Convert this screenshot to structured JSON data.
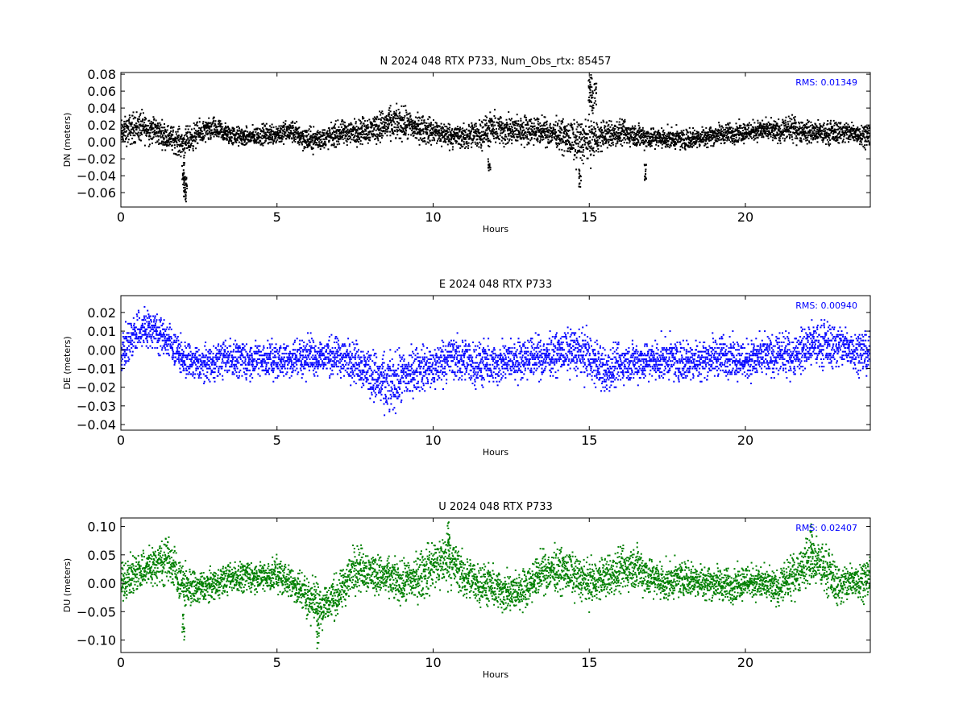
{
  "chart_data": [
    {
      "type": "scatter",
      "title": "N 2024 048 RTX  P733, Num_Obs_rtx: 85457",
      "xlabel": "Hours",
      "ylabel": "DN (meters)",
      "xlim": [
        0,
        24
      ],
      "ylim": [
        -0.077,
        0.082
      ],
      "xticks": [
        0,
        5,
        10,
        15,
        20
      ],
      "xtick_labels": [
        "0",
        "5",
        "10",
        "15",
        "20"
      ],
      "yticks": [
        0.08,
        0.06,
        0.04,
        0.02,
        0.0,
        -0.02,
        -0.04,
        -0.06
      ],
      "ytick_labels": [
        "0.08",
        "0.06",
        "0.04",
        "0.02",
        "0.00",
        "−0.02",
        "−0.04",
        "−0.06"
      ],
      "annotation": "RMS:  0.01349",
      "color": "#000000",
      "grid": false,
      "series": [
        {
          "hours": [
            0,
            0.5,
            1,
            1.5,
            2,
            2.5,
            3,
            3.5,
            4,
            4.5,
            5,
            5.5,
            6,
            6.5,
            7,
            7.5,
            8,
            8.5,
            9,
            9.5,
            10,
            10.5,
            11,
            11.5,
            12,
            12.5,
            13,
            13.5,
            14,
            14.5,
            15,
            15.5,
            16,
            16.5,
            17,
            17.5,
            18,
            18.5,
            19,
            19.5,
            20,
            20.5,
            21,
            21.5,
            22,
            22.5,
            23,
            23.5,
            24
          ],
          "center": [
            0.01,
            0.018,
            0.015,
            0.006,
            -0.002,
            0.01,
            0.015,
            0.008,
            0.005,
            0.008,
            0.01,
            0.012,
            0.002,
            0.004,
            0.01,
            0.012,
            0.015,
            0.02,
            0.022,
            0.016,
            0.012,
            0.008,
            0.005,
            0.01,
            0.015,
            0.012,
            0.015,
            0.012,
            0.01,
            0.0,
            0.002,
            0.008,
            0.01,
            0.008,
            0.005,
            0.004,
            0.003,
            0.005,
            0.008,
            0.01,
            0.012,
            0.014,
            0.012,
            0.015,
            0.012,
            0.01,
            0.012,
            0.01,
            0.008
          ],
          "spread": [
            0.013,
            0.016,
            0.014,
            0.012,
            0.014,
            0.012,
            0.011,
            0.01,
            0.009,
            0.01,
            0.011,
            0.011,
            0.012,
            0.011,
            0.012,
            0.012,
            0.014,
            0.016,
            0.016,
            0.014,
            0.013,
            0.012,
            0.012,
            0.015,
            0.016,
            0.015,
            0.014,
            0.013,
            0.014,
            0.02,
            0.022,
            0.014,
            0.012,
            0.012,
            0.011,
            0.01,
            0.01,
            0.01,
            0.01,
            0.01,
            0.01,
            0.01,
            0.011,
            0.012,
            0.011,
            0.011,
            0.011,
            0.011,
            0.011
          ],
          "outlier_hours": [
            2.0,
            2.02,
            2.05,
            2.08,
            15.0,
            15.05,
            15.1,
            15.2,
            11.8,
            14.7,
            16.8
          ],
          "outlier_values": [
            -0.045,
            -0.06,
            -0.075,
            -0.07,
            0.075,
            0.08,
            0.065,
            0.07,
            -0.035,
            -0.055,
            -0.048
          ]
        }
      ]
    },
    {
      "type": "scatter",
      "title": "E 2024 048 RTX  P733",
      "xlabel": "Hours",
      "ylabel": "DE (meters)",
      "xlim": [
        0,
        24
      ],
      "ylim": [
        -0.043,
        0.029
      ],
      "xticks": [
        0,
        5,
        10,
        15,
        20
      ],
      "xtick_labels": [
        "0",
        "5",
        "10",
        "15",
        "20"
      ],
      "yticks": [
        0.02,
        0.01,
        0.0,
        -0.01,
        -0.02,
        -0.03,
        -0.04
      ],
      "ytick_labels": [
        "0.02",
        "0.01",
        "0.00",
        "−0.01",
        "−0.02",
        "−0.03",
        "−0.04"
      ],
      "annotation": "RMS:  0.00940",
      "color": "#0000ff",
      "grid": false,
      "series": [
        {
          "hours": [
            0,
            0.5,
            1,
            1.5,
            2,
            2.5,
            3,
            3.5,
            4,
            4.5,
            5,
            5.5,
            6,
            6.5,
            7,
            7.5,
            8,
            8.5,
            9,
            9.5,
            10,
            10.5,
            11,
            11.5,
            12,
            12.5,
            13,
            13.5,
            14,
            14.5,
            15,
            15.5,
            16,
            16.5,
            17,
            17.5,
            18,
            18.5,
            19,
            19.5,
            20,
            20.5,
            21,
            21.5,
            22,
            22.5,
            23,
            23.5,
            24
          ],
          "center": [
            -0.002,
            0.01,
            0.012,
            0.005,
            -0.005,
            -0.008,
            -0.006,
            -0.004,
            -0.006,
            -0.005,
            -0.006,
            -0.005,
            -0.003,
            -0.004,
            -0.004,
            -0.006,
            -0.012,
            -0.02,
            -0.015,
            -0.01,
            -0.01,
            -0.004,
            -0.006,
            -0.008,
            -0.008,
            -0.006,
            -0.004,
            -0.004,
            -0.002,
            0.0,
            -0.004,
            -0.012,
            -0.008,
            -0.006,
            -0.006,
            -0.005,
            -0.006,
            -0.005,
            -0.004,
            -0.003,
            -0.006,
            -0.004,
            -0.003,
            -0.003,
            0.002,
            0.003,
            0.002,
            0.0,
            -0.002
          ],
          "spread": [
            0.008,
            0.01,
            0.009,
            0.008,
            0.008,
            0.008,
            0.008,
            0.008,
            0.008,
            0.008,
            0.008,
            0.008,
            0.009,
            0.008,
            0.009,
            0.009,
            0.011,
            0.013,
            0.012,
            0.01,
            0.01,
            0.01,
            0.01,
            0.01,
            0.009,
            0.009,
            0.009,
            0.009,
            0.009,
            0.01,
            0.011,
            0.01,
            0.009,
            0.009,
            0.009,
            0.009,
            0.009,
            0.009,
            0.009,
            0.009,
            0.009,
            0.009,
            0.009,
            0.009,
            0.01,
            0.01,
            0.01,
            0.009,
            0.009
          ],
          "quantization": 0.001
        }
      ]
    },
    {
      "type": "scatter",
      "title": "U 2024 048 RTX  P733",
      "xlabel": "Hours",
      "ylabel": "DU (meters)",
      "xlim": [
        0,
        24
      ],
      "ylim": [
        -0.122,
        0.115
      ],
      "xticks": [
        0,
        5,
        10,
        15,
        20
      ],
      "xtick_labels": [
        "0",
        "5",
        "10",
        "15",
        "20"
      ],
      "yticks": [
        0.1,
        0.05,
        0.0,
        -0.05,
        -0.1
      ],
      "ytick_labels": [
        "0.10",
        "0.05",
        "0.00",
        "−0.05",
        "−0.10"
      ],
      "annotation": "RMS:  0.02407",
      "color": "#008000",
      "grid": false,
      "series": [
        {
          "hours": [
            0,
            0.5,
            1,
            1.5,
            2,
            2.5,
            3,
            3.5,
            4,
            4.5,
            5,
            5.5,
            6,
            6.5,
            7,
            7.5,
            8,
            8.5,
            9,
            9.5,
            10,
            10.5,
            11,
            11.5,
            12,
            12.5,
            13,
            13.5,
            14,
            14.5,
            15,
            15.5,
            16,
            16.5,
            17,
            17.5,
            18,
            18.5,
            19,
            19.5,
            20,
            20.5,
            21,
            21.5,
            22,
            22.5,
            23,
            23.5,
            24
          ],
          "center": [
            0.0,
            0.02,
            0.03,
            0.045,
            -0.005,
            -0.01,
            0.0,
            0.01,
            0.012,
            0.01,
            0.015,
            0.0,
            -0.025,
            -0.04,
            -0.02,
            0.03,
            0.02,
            0.01,
            0.0,
            0.01,
            0.03,
            0.045,
            0.01,
            0.0,
            -0.01,
            -0.02,
            -0.005,
            0.02,
            0.025,
            0.015,
            0.0,
            0.01,
            0.02,
            0.03,
            0.01,
            0.0,
            0.01,
            0.005,
            0.0,
            -0.005,
            0.005,
            0.0,
            -0.01,
            0.01,
            0.04,
            0.03,
            -0.005,
            0.005,
            0.01
          ],
          "spread": [
            0.025,
            0.03,
            0.03,
            0.035,
            0.03,
            0.025,
            0.022,
            0.022,
            0.022,
            0.022,
            0.025,
            0.025,
            0.03,
            0.035,
            0.03,
            0.035,
            0.03,
            0.028,
            0.03,
            0.035,
            0.04,
            0.04,
            0.032,
            0.03,
            0.03,
            0.03,
            0.028,
            0.03,
            0.032,
            0.03,
            0.032,
            0.03,
            0.032,
            0.035,
            0.03,
            0.028,
            0.025,
            0.025,
            0.025,
            0.025,
            0.025,
            0.025,
            0.025,
            0.03,
            0.035,
            0.035,
            0.03,
            0.028,
            0.028
          ],
          "outlier_hours": [
            2.0,
            6.3,
            10.5,
            22.1
          ],
          "outlier_values": [
            -0.1,
            -0.118,
            0.11,
            0.105
          ]
        }
      ]
    }
  ]
}
